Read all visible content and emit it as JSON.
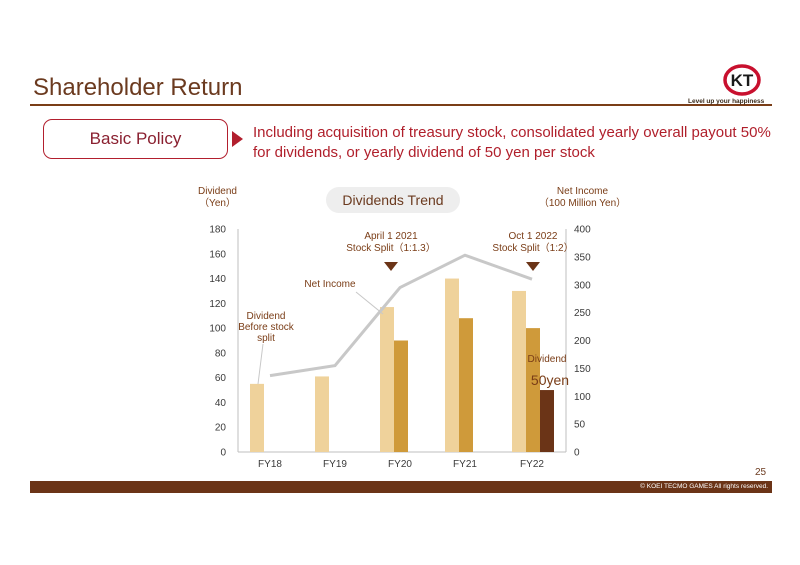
{
  "page": {
    "title": "Shareholder Return",
    "logo_text": "KT",
    "logo_tagline": "Level up your happiness",
    "page_number": "25",
    "copyright": "© KOEI TECMO GAMES All rights reserved."
  },
  "policy": {
    "label": "Basic Policy",
    "text": "Including acquisition of treasury stock, consolidated yearly overall payout 50% for dividends, or yearly dividend of 50 yen per stock"
  },
  "chart_data": {
    "type": "bar",
    "title": "Dividends Trend",
    "left_axis_title": "Dividend\n（Yen）",
    "right_axis_title": "Net Income\n（100 Million Yen）",
    "categories": [
      "FY18",
      "FY19",
      "FY20",
      "FY21",
      "FY22"
    ],
    "ylim_left": [
      0,
      180
    ],
    "yticks_left": [
      0,
      20,
      40,
      60,
      80,
      100,
      120,
      140,
      160,
      180
    ],
    "ylim_right": [
      0,
      400
    ],
    "yticks_right": [
      0,
      50,
      100,
      150,
      200,
      250,
      300,
      350,
      400
    ],
    "dividend_bars": [
      {
        "category": "FY18",
        "value": 55,
        "color": "#efd29b"
      },
      {
        "category": "FY19",
        "value": 61,
        "color": "#efd29b"
      },
      {
        "category": "FY20",
        "value": 117,
        "color": "#efd29b"
      },
      {
        "category": "FY20",
        "value": 90,
        "color": "#cf9a3a"
      },
      {
        "category": "FY21",
        "value": 140,
        "color": "#efd29b"
      },
      {
        "category": "FY21",
        "value": 108,
        "color": "#cf9a3a"
      },
      {
        "category": "FY22",
        "value": 130,
        "color": "#efd29b"
      },
      {
        "category": "FY22",
        "value": 100,
        "color": "#cf9a3a"
      },
      {
        "category": "FY22",
        "value": 50,
        "color": "#6b3417"
      }
    ],
    "net_income": {
      "values": [
        137,
        155,
        295,
        353,
        310
      ],
      "color": "#c8c8c8"
    },
    "annotations": {
      "net_income_label": "Net Income",
      "dividend_before_split": "Dividend\nBefore stock\nsplit",
      "split_2021": "April 1 2021\nStock Split（1:1.3）",
      "split_2022": "Oct 1 2022\nStock Split（1:2）",
      "dividend_label": "Dividend",
      "dividend_value": "50yen"
    },
    "colors": {
      "axis_text": "#3a3a3a",
      "annotation": "#7a3d17",
      "marker": "#6b3417"
    }
  }
}
